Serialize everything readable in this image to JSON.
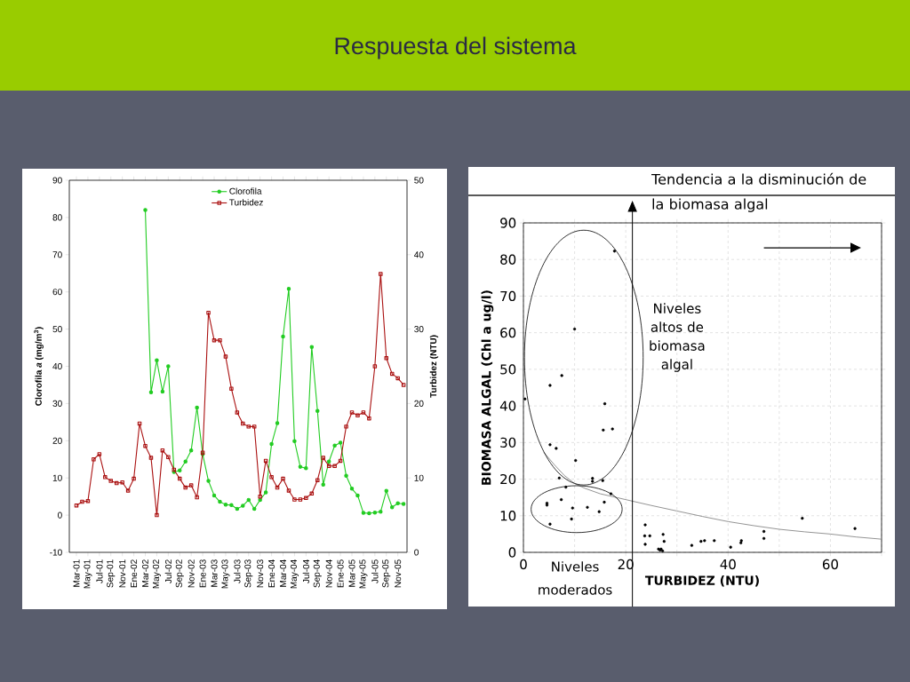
{
  "chart_data": [
    {
      "type": "line",
      "title": "Respuesta del sistema",
      "categories": [
        "Mar-01",
        null,
        "May-01",
        null,
        "Jul-01",
        null,
        "Sep-01",
        null,
        "Nov-01",
        null,
        "Ene-02",
        null,
        "Mar-02",
        null,
        "May-02",
        null,
        "Jul-02",
        null,
        "Sep-02",
        null,
        "Nov-02",
        null,
        "Ene-03",
        null,
        "Mar-03",
        null,
        "May-03",
        null,
        "Jul-03",
        null,
        "Sep-03",
        null,
        "Nov-03",
        null,
        "Ene-04",
        null,
        "Mar-04",
        null,
        "May-04",
        null,
        "Jul-04",
        null,
        "Sep-04",
        null,
        "Nov-04",
        null,
        "Ene-05",
        null,
        "Mar-05",
        null,
        "May-05",
        null,
        "Jul-05",
        null,
        "Sep-05",
        null,
        "Nov-05",
        null
      ],
      "series": [
        {
          "name": "Clorofila",
          "color": "#22cc22",
          "marker": "circle",
          "values": [
            null,
            null,
            null,
            null,
            null,
            null,
            null,
            null,
            null,
            null,
            null,
            null,
            82,
            33.0,
            41.6,
            33.2,
            40,
            11.6,
            12.0,
            14.4,
            17.4,
            28.9,
            16.4,
            9.2,
            5.3,
            3.6,
            2.8,
            2.7,
            1.7,
            2.5,
            4.1,
            1.7,
            4.1,
            6.1,
            19.1,
            24.7,
            48,
            60.8,
            19.9,
            13.0,
            12.6,
            45.2,
            28.0,
            8.2,
            14.4,
            18.7,
            19.5,
            10.6,
            7.1,
            5.3,
            0.6,
            0.5,
            0.7,
            0.9,
            6.5,
            2.1,
            3.2,
            3.0
          ]
        },
        {
          "name": "Turbidez",
          "color": "#aa1111",
          "marker": "square",
          "axis": "y2",
          "values": [
            6.3,
            6.8,
            6.9,
            12.5,
            13.2,
            10.1,
            9.6,
            9.3,
            9.4,
            8.3,
            9.9,
            17.3,
            14.3,
            12.7,
            5.0,
            13.7,
            12.8,
            11.1,
            9.9,
            8.7,
            9.0,
            7.4,
            13.4,
            32.2,
            28.5,
            28.5,
            26.3,
            22.0,
            18.8,
            17.3,
            16.9,
            16.9,
            7.5,
            12.3,
            10.1,
            8.7,
            9.9,
            8.3,
            7.1,
            7.1,
            7.3,
            7.9,
            9.7,
            12.7,
            11.6,
            11.6,
            12.3,
            16.9,
            18.8,
            18.4,
            18.8,
            18.0,
            25.0,
            37.4,
            26.1,
            24.0,
            23.4,
            22.5
          ]
        }
      ],
      "ylabel": "Clorofila *a* (mg/m$^{3}$)",
      "y2label": "Turbidez (NTU)",
      "ylim": [
        -10,
        90
      ],
      "yticks": [
        -10,
        0,
        10,
        20,
        30,
        40,
        50,
        60,
        70,
        80,
        90
      ],
      "y2lim": [
        0,
        50
      ],
      "y2ticks": [
        0,
        10,
        20,
        30,
        40,
        50
      ],
      "legend": "top"
    },
    {
      "type": "scatter",
      "series": [
        {
          "type": "scatter",
          "color": "#000000",
          "marker": "circle",
          "x": [
            0.3,
            5.2,
            5.2,
            6.4,
            10.2,
            7.0,
            8.3,
            4.6,
            4.6,
            7.4,
            9.6,
            9.4,
            5.2,
            12.5,
            14.8,
            13.5,
            13.5,
            15.5,
            15.8,
            15.9,
            15.6,
            17.4,
            17.1,
            23.8,
            23.7,
            24.7,
            23.8,
            26.4,
            26.9,
            27.2,
            26.7,
            27.3,
            27.5,
            32.9,
            34.7,
            35.4,
            37.3,
            40.5,
            42.5,
            42.6,
            47.0,
            47.0,
            54.5,
            64.8,
            10.0,
            17.8,
            7.5
          ],
          "values": [
            41.9,
            45.6,
            29.4,
            28.4,
            25.1,
            20.3,
            17.8,
            13.4,
            12.9,
            14.4,
            12.1,
            9.1,
            7.7,
            12.3,
            11.1,
            20.2,
            19.4,
            19.6,
            13.7,
            40.6,
            33.4,
            33.7,
            16.0,
            7.5,
            4.5,
            4.5,
            2.2,
            0.9,
            0.9,
            0.4,
            0.6,
            4.9,
            3.0,
            1.9,
            3.0,
            3.2,
            3.2,
            1.4,
            2.6,
            3.2,
            3.8,
            5.7,
            9.3,
            6.5,
            61.0,
            82.3,
            48.3
          ]
        },
        {
          "type": "line",
          "color": "#888888",
          "marker": "none",
          "x": [
            4,
            6,
            8,
            10,
            12,
            15,
            20,
            25,
            30,
            35,
            40,
            45,
            50,
            55,
            60,
            65,
            70
          ],
          "values": [
            27.3,
            24,
            21,
            18.8,
            17.5,
            16,
            14.4,
            12.8,
            11.3,
            9.8,
            8.4,
            7.3,
            6.3,
            5.6,
            5.0,
            4.2,
            3.6
          ]
        }
      ],
      "xlabel": "TURBIDEZ (NTU)",
      "ylabel": "BIOMASA ALGAL (Chl a ug/l)",
      "xlim": [
        0,
        70
      ],
      "xticks": [
        0,
        {
          "value": 10,
          "label": null
        },
        20,
        {
          "value": 30,
          "label": null
        },
        40,
        {
          "value": 50,
          "label": null
        },
        60,
        {
          "value": 70,
          "label": null
        }
      ],
      "ylim": [
        0,
        90
      ],
      "yticks": [
        0,
        10,
        20,
        30,
        40,
        50,
        60,
        70,
        80,
        90
      ],
      "grid": true,
      "ref_lines": [
        {
          "axis": "x",
          "value": 21.3,
          "color": "#000000"
        }
      ],
      "annotations": [
        "Tendencia a la disminución de la biomasa algal",
        "Niveles altos de biomasa algal",
        "Niveles moderados"
      ]
    }
  ]
}
